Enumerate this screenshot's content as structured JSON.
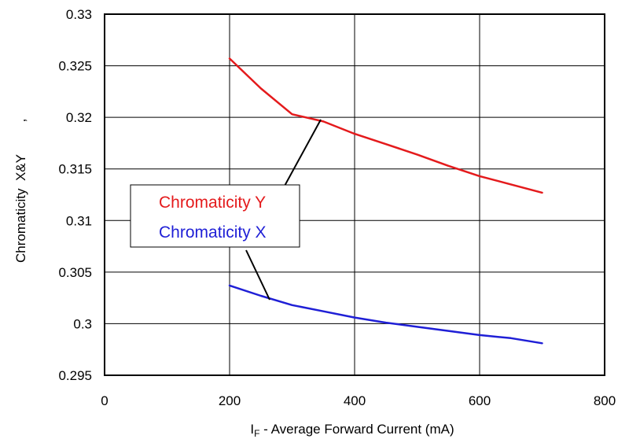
{
  "chart_data": {
    "type": "line",
    "xlabel_main": "I",
    "xlabel_sub": "F",
    "xlabel_rest": " - Average Forward Current (mA)",
    "ylabel": "Chromaticity  X&Y",
    "ylabel_mark": ",",
    "xlim": [
      0,
      800
    ],
    "ylim": [
      0.295,
      0.33
    ],
    "x_ticks": [
      "0",
      "200",
      "400",
      "600",
      "800"
    ],
    "y_ticks": [
      "0.295",
      "0.3",
      "0.305",
      "0.31",
      "0.315",
      "0.32",
      "0.325",
      "0.33"
    ],
    "grid": true,
    "series": [
      {
        "name": "Chromaticity Y",
        "color": "#e41a1c",
        "x": [
          200,
          250,
          300,
          350,
          400,
          450,
          500,
          550,
          600,
          650,
          700
        ],
        "y": [
          0.3257,
          0.3228,
          0.3203,
          0.3196,
          0.3184,
          0.3174,
          0.3164,
          0.3153,
          0.3143,
          0.3135,
          0.3127
        ]
      },
      {
        "name": "Chromaticity X",
        "color": "#1f1fd6",
        "x": [
          200,
          250,
          300,
          350,
          400,
          450,
          500,
          550,
          600,
          650,
          700
        ],
        "y": [
          0.3037,
          0.3027,
          0.3018,
          0.3012,
          0.3006,
          0.3001,
          0.2997,
          0.2993,
          0.2989,
          0.2986,
          0.2981
        ]
      }
    ],
    "legend": {
      "position": "left-center",
      "entries": [
        "Chromaticity Y",
        "Chromaticity X"
      ]
    }
  }
}
